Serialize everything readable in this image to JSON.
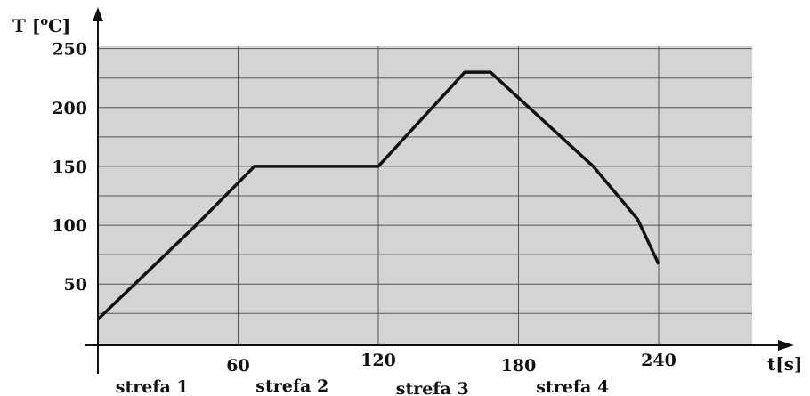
{
  "chart_data": {
    "type": "line",
    "ylabel_prefix": "T [",
    "ylabel_sup": "o",
    "ylabel_suffix": "C]",
    "xlabel": "t[s]",
    "xlim": [
      0,
      280
    ],
    "ylim": [
      -2,
      252
    ],
    "x_ticks": [
      "60",
      "120",
      "180",
      "240"
    ],
    "y_ticks": [
      "250",
      "200",
      "150",
      "100",
      "50"
    ],
    "zones": [
      "strefa 1",
      "strefa 2",
      "strefa 3",
      "strefa 4"
    ],
    "series": [
      {
        "x": [
          0,
          42,
          67,
          120,
          157,
          168,
          212,
          231,
          240
        ],
        "y": [
          20,
          100,
          150,
          150,
          230,
          230,
          150,
          105,
          67
        ]
      }
    ],
    "grid": true,
    "colors": {
      "plot_bg": "#d4d4d4",
      "grid": "#555555",
      "line": "#111111"
    }
  }
}
